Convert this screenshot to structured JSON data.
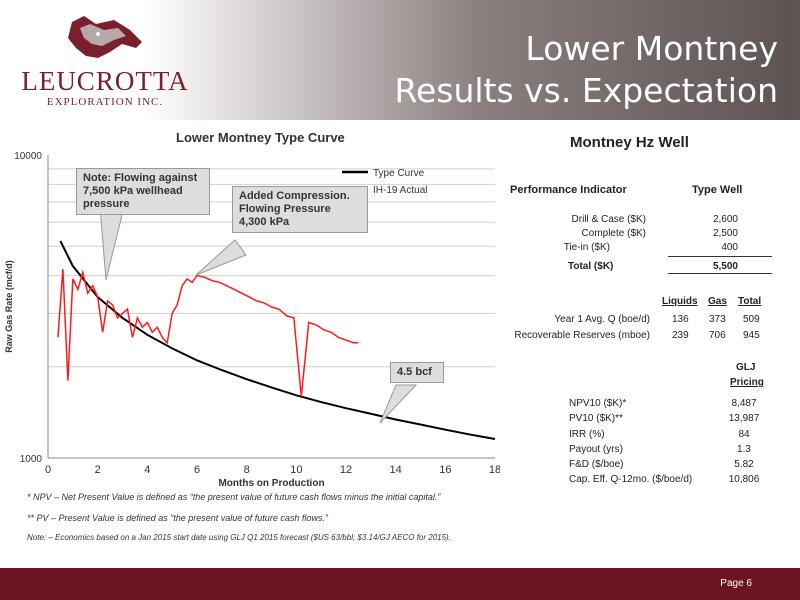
{
  "header": {
    "title_line1": "Lower Montney",
    "title_line2": "Results vs. Expectation",
    "company_name": "LEUCROTTA",
    "company_sub": "EXPLORATION INC.",
    "logo_icon": "hyena-head-icon"
  },
  "chart_data": {
    "type": "line",
    "title": "Lower Montney Type Curve",
    "xlabel": "Months on Production",
    "ylabel": "Raw Gas Rate (mcf/d)",
    "xlim": [
      0,
      18
    ],
    "ylim": [
      1000,
      10000
    ],
    "yscale": "log",
    "x_ticks": [
      "0",
      "2",
      "4",
      "6",
      "8",
      "10",
      "12",
      "14",
      "16",
      "18"
    ],
    "y_ticks": [
      "1000",
      "10000"
    ],
    "legend": "top-right",
    "series": [
      {
        "name": "Type Curve",
        "color": "#000000",
        "x": [
          0.5,
          1,
          2,
          3,
          4,
          5,
          6,
          7,
          8,
          9,
          10,
          11,
          12,
          13,
          14,
          15,
          16,
          17,
          18
        ],
        "y": [
          5200,
          4300,
          3400,
          2900,
          2550,
          2300,
          2100,
          1950,
          1820,
          1710,
          1610,
          1530,
          1460,
          1400,
          1340,
          1290,
          1240,
          1195,
          1155
        ]
      },
      {
        "name": "IH-19 Actual",
        "color": "#ff1a1a",
        "x": [
          0.4,
          0.6,
          0.8,
          1.0,
          1.2,
          1.4,
          1.6,
          1.8,
          2.0,
          2.2,
          2.4,
          2.6,
          2.8,
          3.0,
          3.2,
          3.4,
          3.6,
          3.8,
          4.0,
          4.2,
          4.4,
          4.6,
          4.8,
          5.0,
          5.2,
          5.4,
          5.6,
          5.8,
          6.0,
          6.3,
          6.6,
          6.9,
          7.2,
          7.5,
          7.8,
          8.1,
          8.4,
          8.7,
          9.0,
          9.3,
          9.6,
          9.9,
          10.2,
          10.5,
          10.8,
          11.1,
          11.4,
          11.7,
          12.0,
          12.3,
          12.5
        ],
        "y": [
          2500,
          4200,
          1800,
          3900,
          3600,
          4100,
          3500,
          3700,
          3400,
          2600,
          3300,
          3200,
          2900,
          3000,
          3100,
          2500,
          2900,
          2700,
          2800,
          2600,
          2700,
          2500,
          2400,
          3000,
          3200,
          3700,
          3900,
          3800,
          4000,
          3950,
          3850,
          3800,
          3700,
          3600,
          3500,
          3400,
          3300,
          3250,
          3150,
          3100,
          2950,
          2900,
          1600,
          2800,
          2750,
          2650,
          2600,
          2500,
          2450,
          2400,
          2400
        ]
      }
    ],
    "annotations": [
      "Note: Flowing against 7,500 kPa wellhead pressure",
      "Added Compression. Flowing Pressure 4,300 kPa",
      "4.5 bcf"
    ]
  },
  "footnotes": {
    "npv": "* NPV – Net Present Value is defined as “the present value of future cash flows minus the initial capital.”",
    "pv": "** PV – Present Value is defined as “the present value of future cash flows.”",
    "note": "Note: – Economics based on a Jan 2015 start date using GLJ Q1 2015 forecast ($US 63/bbl; $3.14/GJ AECO for 2015)."
  },
  "well": {
    "heading": "Montney Hz Well",
    "col_indicator": "Performance Indicator",
    "col_type_well": "Type Well",
    "costs": [
      {
        "label": "Drill & Case ($K)",
        "value": "2,600"
      },
      {
        "label": "Complete ($K)",
        "value": "2,500"
      },
      {
        "label": "Tie-in ($K)",
        "value": "400"
      }
    ],
    "total": {
      "label": "Total ($K)",
      "value": "5,500"
    },
    "prod_headers": [
      "Liquids",
      "Gas",
      "Total"
    ],
    "prod_rows": [
      {
        "label": "Year 1 Avg. Q (boe/d)",
        "values": [
          "136",
          "373",
          "509"
        ]
      },
      {
        "label": "Recoverable Reserves (mboe)",
        "values": [
          "239",
          "706",
          "945"
        ]
      }
    ],
    "pricing_header_1": "GLJ",
    "pricing_header_2": "Pricing",
    "econ": [
      {
        "label": "NPV10 ($K)*",
        "value": "8,487"
      },
      {
        "label": "PV10 ($K)**",
        "value": "13,987"
      },
      {
        "label": "IRR (%)",
        "value": "84"
      },
      {
        "label": "Payout (yrs)",
        "value": "1.3"
      },
      {
        "label": "F&D ($/boe)",
        "value": "5.82"
      },
      {
        "label": "Cap. Eff. Q-12mo. ($/boe/d)",
        "value": "10,806"
      }
    ]
  },
  "footer": {
    "page": "Page 6"
  }
}
